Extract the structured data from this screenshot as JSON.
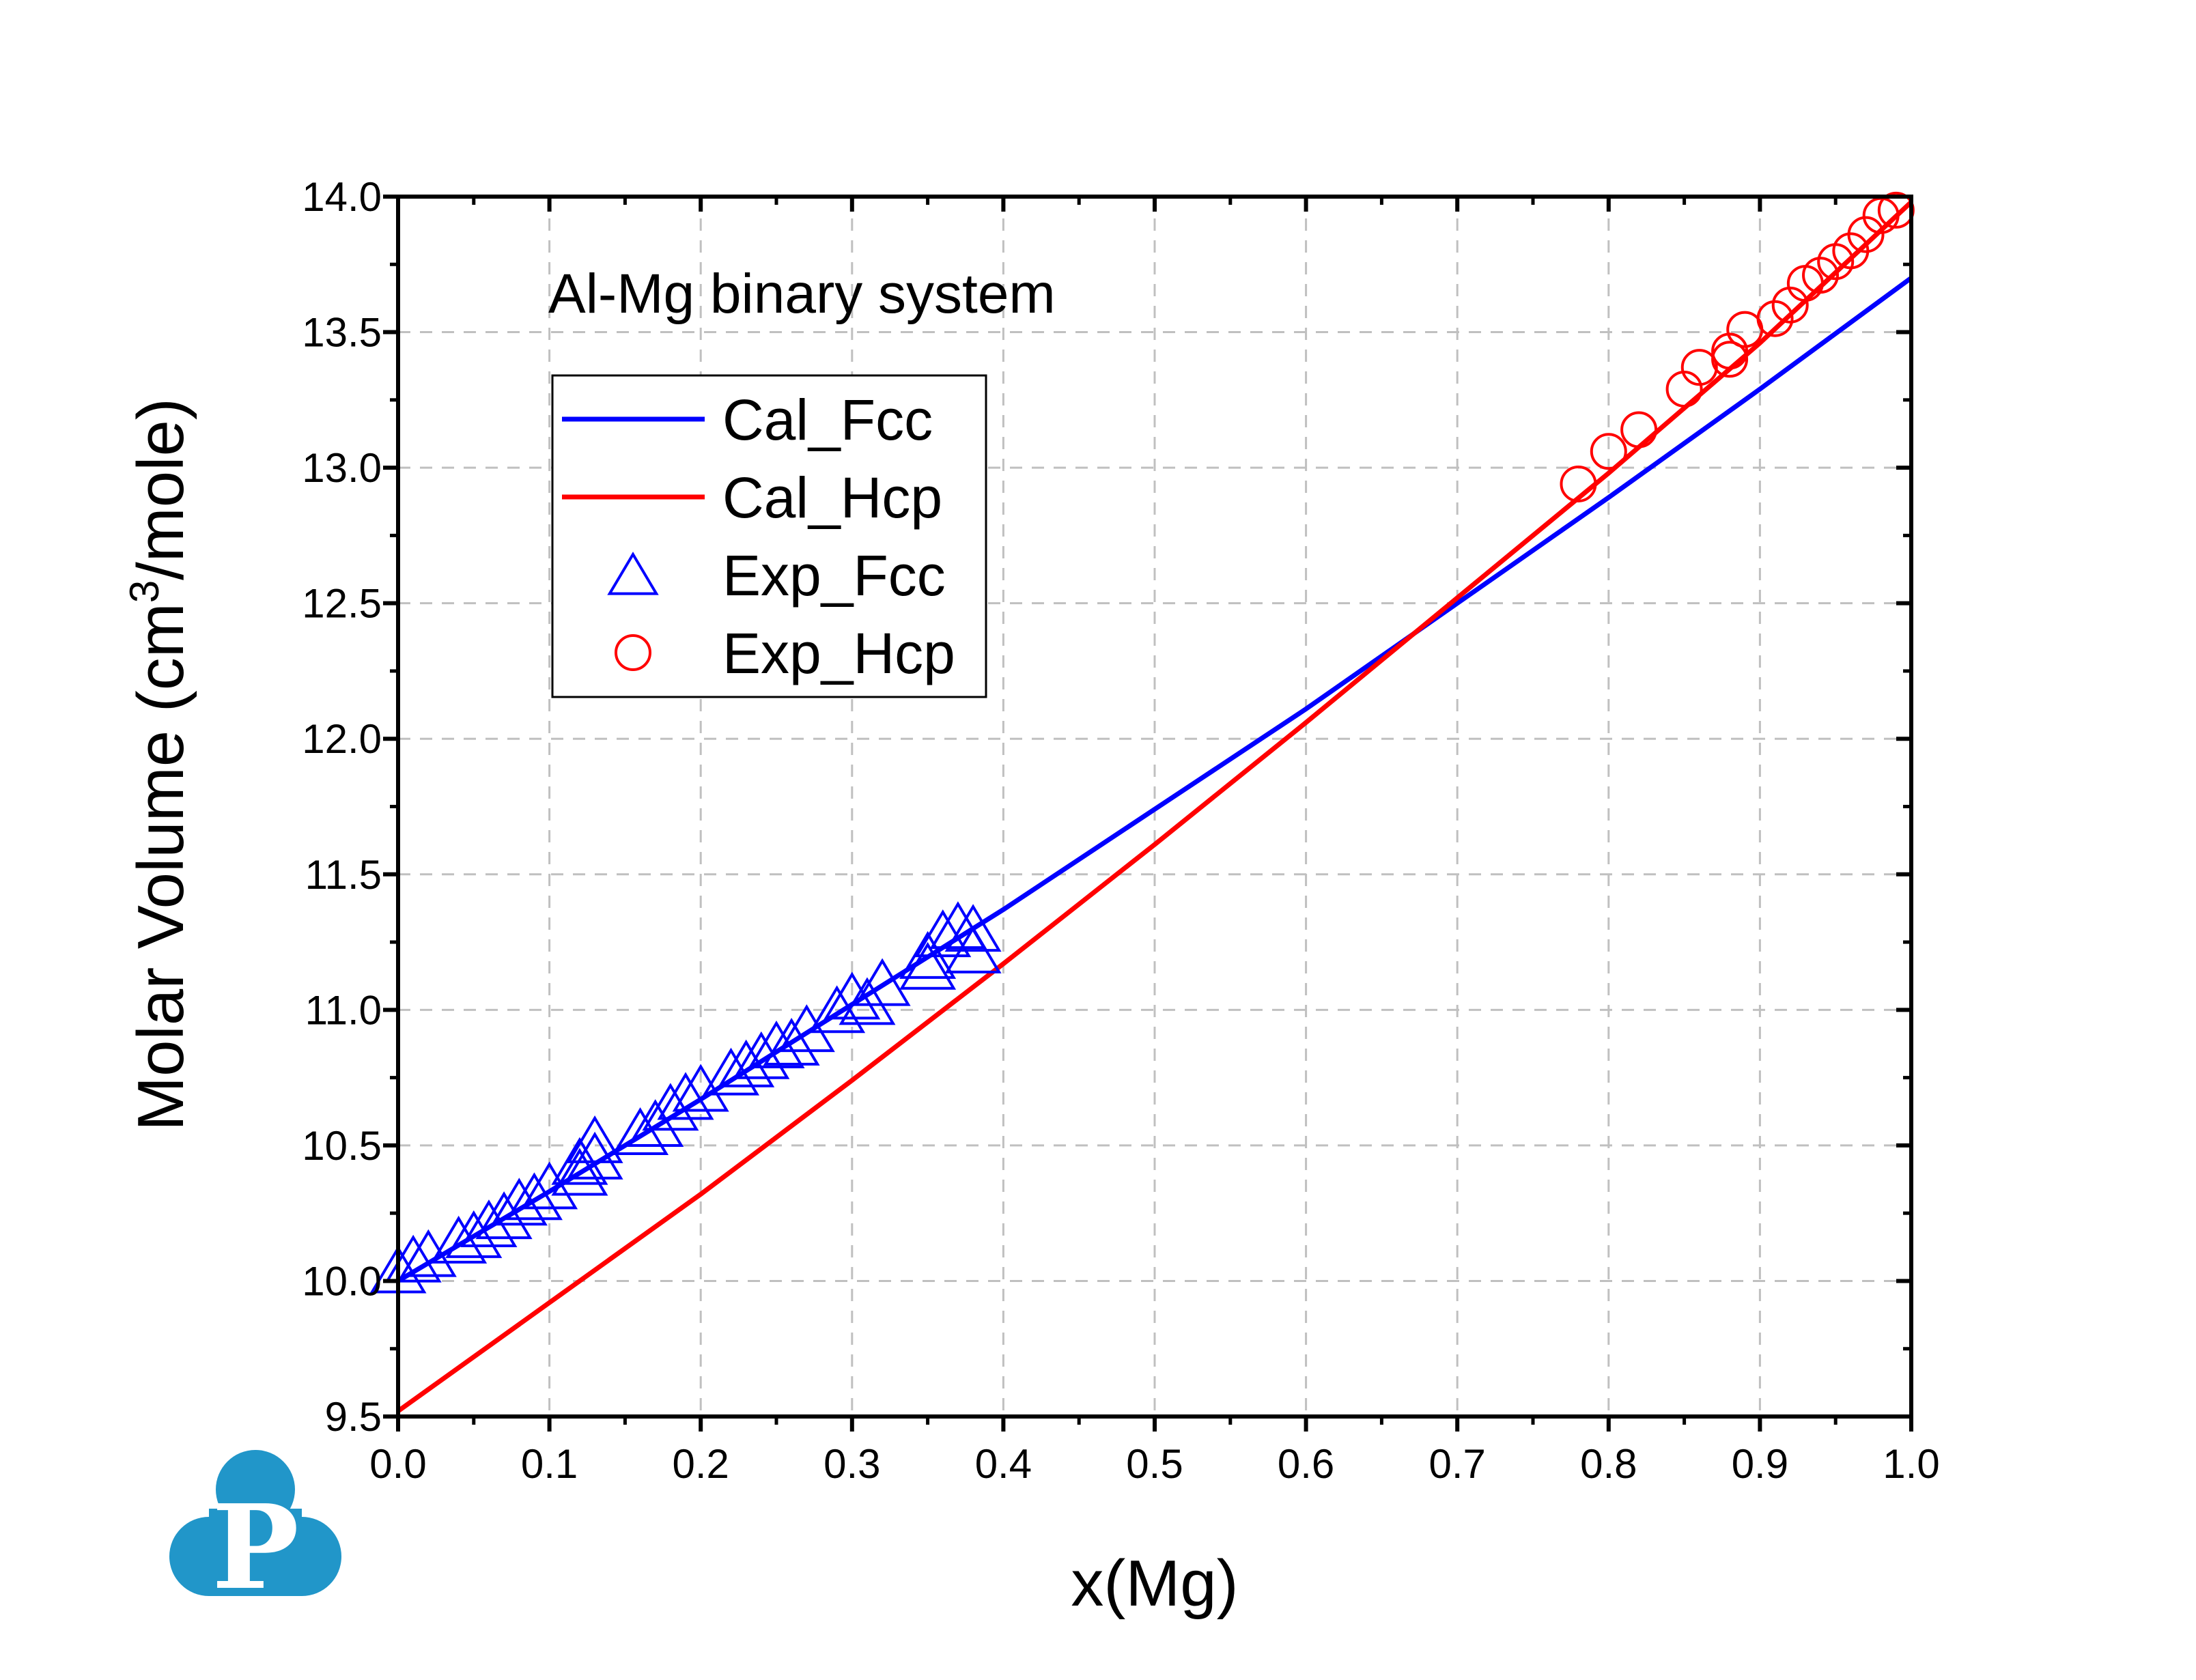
{
  "chart_data": {
    "type": "line",
    "annotation": "Al-Mg binary system",
    "xlabel": "x(Mg)",
    "ylabel_main": "Molar Volume (cm",
    "ylabel_sup": "3",
    "ylabel_end": "/mole)",
    "xlim": [
      0.0,
      1.0
    ],
    "ylim": [
      9.5,
      14.0
    ],
    "xticks": [
      "0.0",
      "0.1",
      "0.2",
      "0.3",
      "0.4",
      "0.5",
      "0.6",
      "0.7",
      "0.8",
      "0.9",
      "1.0"
    ],
    "yticks": [
      "9.5",
      "10.0",
      "10.5",
      "11.0",
      "11.5",
      "12.0",
      "12.5",
      "13.0",
      "13.5",
      "14.0"
    ],
    "grid": true,
    "legend_position": "upper-left",
    "series": [
      {
        "name": "Cal_Fcc",
        "kind": "line",
        "color": "#0000ff",
        "x": [
          0,
          0.1,
          0.2,
          0.3,
          0.4,
          0.5,
          0.6,
          0.7,
          0.8,
          0.9,
          1.0
        ],
        "y": [
          10.0,
          10.33,
          10.67,
          11.02,
          11.37,
          11.74,
          12.11,
          12.5,
          12.89,
          13.29,
          13.7
        ]
      },
      {
        "name": "Cal_Hcp",
        "kind": "line",
        "color": "#ff0000",
        "x": [
          0,
          0.1,
          0.2,
          0.3,
          0.4,
          0.5,
          0.6,
          0.7,
          0.8,
          0.9,
          1.0
        ],
        "y": [
          9.52,
          9.92,
          10.32,
          10.74,
          11.17,
          11.61,
          12.06,
          12.52,
          12.98,
          13.46,
          13.98
        ]
      },
      {
        "name": "Exp_Fcc",
        "kind": "scatter",
        "marker": "triangle-open",
        "color": "#0000ff",
        "x": [
          0.0,
          0.01,
          0.02,
          0.04,
          0.05,
          0.06,
          0.07,
          0.08,
          0.09,
          0.1,
          0.12,
          0.12,
          0.13,
          0.13,
          0.16,
          0.17,
          0.18,
          0.19,
          0.2,
          0.22,
          0.23,
          0.24,
          0.25,
          0.26,
          0.27,
          0.29,
          0.3,
          0.31,
          0.32,
          0.35,
          0.35,
          0.36,
          0.37,
          0.38,
          0.38
        ],
        "y": [
          10.02,
          10.06,
          10.08,
          10.13,
          10.15,
          10.19,
          10.22,
          10.27,
          10.29,
          10.33,
          10.38,
          10.42,
          10.5,
          10.44,
          10.53,
          10.56,
          10.62,
          10.66,
          10.69,
          10.75,
          10.78,
          10.81,
          10.85,
          10.86,
          10.91,
          10.98,
          11.03,
          11.01,
          11.08,
          11.18,
          11.14,
          11.26,
          11.29,
          11.28,
          11.2
        ]
      },
      {
        "name": "Exp_Hcp",
        "kind": "scatter",
        "marker": "circle-open",
        "color": "#ff0000",
        "x": [
          0.78,
          0.8,
          0.82,
          0.85,
          0.86,
          0.88,
          0.88,
          0.89,
          0.91,
          0.92,
          0.93,
          0.94,
          0.95,
          0.96,
          0.97,
          0.98,
          0.99
        ],
        "y": [
          12.94,
          13.06,
          13.14,
          13.29,
          13.37,
          13.4,
          13.43,
          13.51,
          13.55,
          13.6,
          13.68,
          13.71,
          13.76,
          13.8,
          13.86,
          13.93,
          13.95
        ]
      }
    ]
  },
  "logo": {
    "letter": "P",
    "color": "#2196c9"
  }
}
